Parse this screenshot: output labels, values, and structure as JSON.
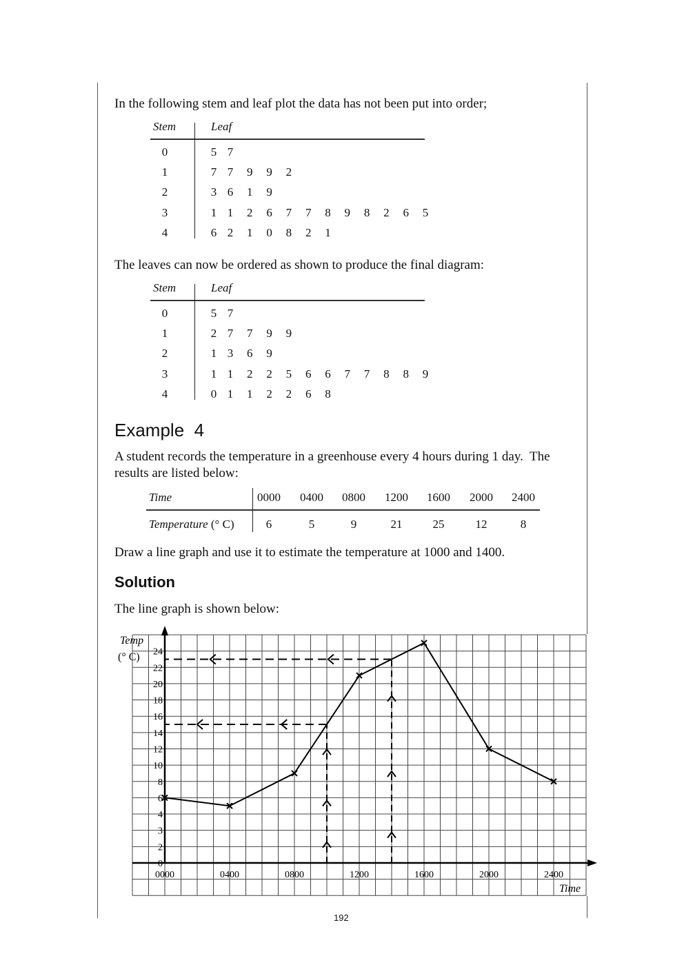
{
  "intro_text": "In the following stem and leaf plot the data has not been put into order;",
  "table1": {
    "stem_header": "Stem",
    "leaf_header": "Leaf",
    "rows": [
      {
        "stem": "0",
        "leaves": [
          "5",
          "7"
        ]
      },
      {
        "stem": "1",
        "leaves": [
          "7",
          "7",
          "9",
          "9",
          "2"
        ]
      },
      {
        "stem": "2",
        "leaves": [
          "3",
          "6",
          "1",
          "9"
        ]
      },
      {
        "stem": "3",
        "leaves": [
          "1",
          "1",
          "2",
          "6",
          "7",
          "7",
          "8",
          "9",
          "8",
          "2",
          "6",
          "5"
        ]
      },
      {
        "stem": "4",
        "leaves": [
          "6",
          "2",
          "1",
          "0",
          "8",
          "2",
          "1"
        ]
      }
    ]
  },
  "ordered_text": "The leaves can now be ordered as shown to produce the final diagram:",
  "table2": {
    "stem_header": "Stem",
    "leaf_header": "Leaf",
    "rows": [
      {
        "stem": "0",
        "leaves": [
          "5",
          "7"
        ]
      },
      {
        "stem": "1",
        "leaves": [
          "2",
          "7",
          "7",
          "9",
          "9"
        ]
      },
      {
        "stem": "2",
        "leaves": [
          "1",
          "3",
          "6",
          "9"
        ]
      },
      {
        "stem": "3",
        "leaves": [
          "1",
          "1",
          "2",
          "2",
          "5",
          "6",
          "6",
          "7",
          "7",
          "8",
          "8",
          "9"
        ]
      },
      {
        "stem": "4",
        "leaves": [
          "0",
          "1",
          "1",
          "2",
          "2",
          "6",
          "8"
        ]
      }
    ]
  },
  "example_title": "Example  4",
  "example_text_1": "A student records the temperature in a greenhouse every 4 hours during 1 day.  The",
  "example_text_2": "results are listed below:",
  "data_table": {
    "row1_label": "Time",
    "row2_label": "Temperature",
    "row2_unit": " (° C)",
    "times": [
      "0000",
      "0400",
      "0800",
      "1200",
      "1600",
      "2000",
      "2400"
    ],
    "temps": [
      "6",
      "5",
      "9",
      "21",
      "25",
      "12",
      "8"
    ]
  },
  "task_text": "Draw a line graph and use it to estimate the temperature at 1000 and 1400.",
  "solution_title": "Solution",
  "solution_text": "The line graph is shown below:",
  "page_number": "192",
  "chart_data": {
    "type": "line",
    "ylabel_1": "Temp",
    "ylabel_2": "(° C)",
    "xlabel": "Time",
    "x": [
      "0000",
      "0400",
      "0800",
      "1200",
      "1600",
      "2000",
      "2400"
    ],
    "x_hours": [
      0,
      4,
      8,
      12,
      16,
      20,
      24
    ],
    "y": [
      6,
      5,
      9,
      21,
      25,
      12,
      8
    ],
    "x_ticks": [
      "0000",
      "0400",
      "0800",
      "1200",
      "1600",
      "2000",
      "2400"
    ],
    "y_ticks": [
      0,
      2,
      3,
      4,
      6,
      8,
      10,
      12,
      14,
      16,
      18,
      20,
      22,
      24
    ],
    "grid": true,
    "marker": "cross",
    "estimates": [
      {
        "x": "1000",
        "x_hours": 10,
        "y": 15
      },
      {
        "x": "1400",
        "x_hours": 14,
        "y": 23
      }
    ]
  }
}
